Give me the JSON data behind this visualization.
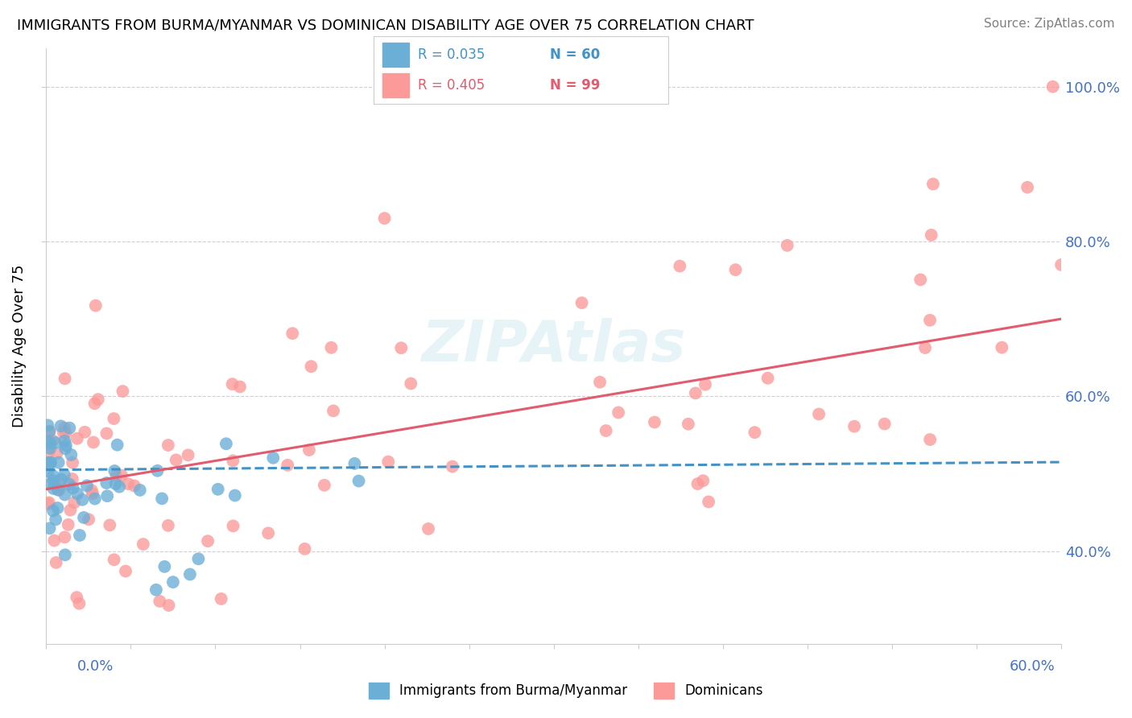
{
  "title": "IMMIGRANTS FROM BURMA/MYANMAR VS DOMINICAN DISABILITY AGE OVER 75 CORRELATION CHART",
  "source": "Source: ZipAtlas.com",
  "ylabel": "Disability Age Over 75",
  "y_tick_labels": [
    "40.0%",
    "60.0%",
    "80.0%",
    "100.0%"
  ],
  "x_range": [
    0.0,
    0.6
  ],
  "y_range": [
    0.28,
    1.05
  ],
  "legend_r1": "R = 0.035",
  "legend_n1": "N = 60",
  "legend_r2": "R = 0.405",
  "legend_n2": "N = 99",
  "color_burma": "#6baed6",
  "color_dominican": "#fb9a99",
  "color_burma_line": "#4292c6",
  "color_dominican_line": "#e05c6e",
  "color_axis_labels": "#4472c4",
  "color_grid": "#d0d0d0",
  "watermark_text": "ZIPAtlas",
  "burma_trendline": [
    0.505,
    0.515
  ],
  "dominican_trendline": [
    0.48,
    0.7
  ]
}
